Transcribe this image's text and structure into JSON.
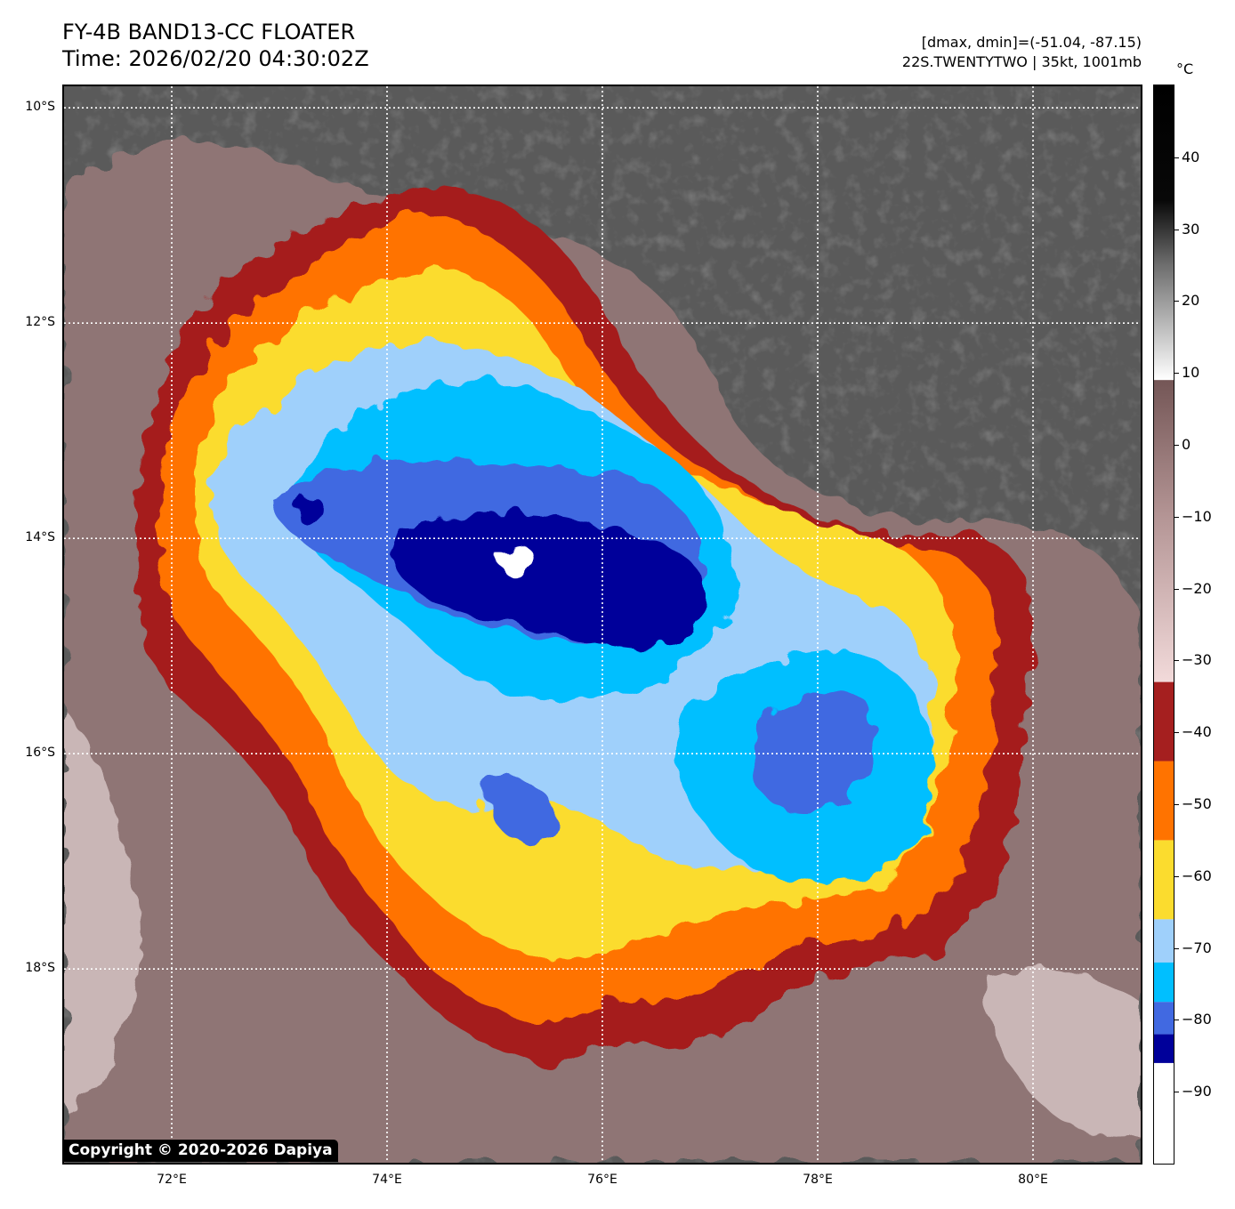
{
  "header": {
    "title_line1": "FY-4B BAND13-CC FLOATER",
    "title_line2": "Time: 2026/02/20 04:30:02Z",
    "stats": "[dmax, dmin]=(-51.04, -87.15)",
    "storm": "22S.TWENTYTWO | 35kt, 1001mb"
  },
  "axes": {
    "lat_labels": [
      "10°S",
      "12°S",
      "14°S",
      "16°S",
      "18°S"
    ],
    "lon_labels": [
      "72°E",
      "74°E",
      "76°E",
      "78°E",
      "80°E"
    ],
    "lat_range": [
      -19.8,
      -9.8
    ],
    "lon_range": [
      71.0,
      81.0
    ]
  },
  "colorbar": {
    "unit": "°C",
    "tick_labels": [
      "40",
      "30",
      "20",
      "10",
      "0",
      "−10",
      "−20",
      "−30",
      "−40",
      "−50",
      "−60",
      "−70",
      "−80",
      "−90"
    ],
    "tick_values": [
      40,
      30,
      20,
      10,
      0,
      -10,
      -20,
      -30,
      -40,
      -50,
      -60,
      -70,
      -80,
      -90
    ],
    "range": [
      -100,
      50
    ],
    "bands": [
      {
        "from": -100,
        "to": -86,
        "color": "#ffffff"
      },
      {
        "from": -86,
        "to": -82,
        "color": "#00009a"
      },
      {
        "from": -82,
        "to": -77.5,
        "color": "#4169e1"
      },
      {
        "from": -77.5,
        "to": -72,
        "color": "#00bfff"
      },
      {
        "from": -72,
        "to": -66,
        "color": "#9fd0fb"
      },
      {
        "from": -66,
        "to": -55,
        "color": "#fbdc2e"
      },
      {
        "from": -55,
        "to": -44,
        "color": "#ff7300"
      },
      {
        "from": -44,
        "to": -33,
        "color": "#a51f1f"
      }
    ],
    "gradient": [
      {
        "value": -33,
        "color": "#f2dada"
      },
      {
        "value": -10,
        "color": "#b49595"
      },
      {
        "value": 9,
        "color": "#745656"
      },
      {
        "value": 9.01,
        "color": "#ffffff"
      },
      {
        "value": 25,
        "color": "#6e6e6e"
      },
      {
        "value": 34,
        "color": "#080808"
      },
      {
        "value": 50,
        "color": "#000000"
      }
    ]
  },
  "colors": {
    "ocean": "#5a5a5a",
    "warm_cirrus": "#8f7474",
    "light_cloud": "#c9b6b6",
    "band_dark_red": "#a51f1f",
    "band_orange": "#ff7300",
    "band_yellow": "#fbdc2e",
    "band_light_blue": "#9fd0fb",
    "band_cyan": "#00bfff",
    "band_royal_blue": "#4169e1",
    "band_navy": "#00009a",
    "band_white": "#ffffff"
  },
  "copyright": "Copyright © 2020-2026 Dapiya"
}
